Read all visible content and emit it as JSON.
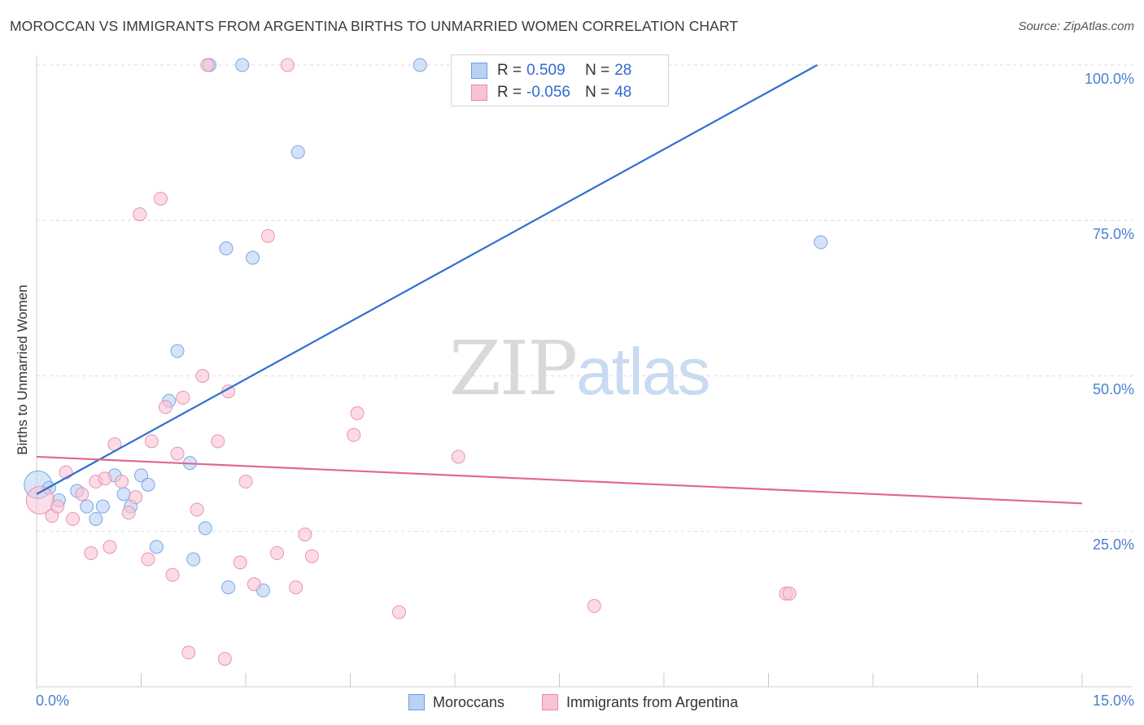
{
  "title": "MOROCCAN VS IMMIGRANTS FROM ARGENTINA BIRTHS TO UNMARRIED WOMEN CORRELATION CHART",
  "source": "Source: ZipAtlas.com",
  "watermark": {
    "zip": "ZIP",
    "atlas": "atlas"
  },
  "legend": {
    "r_label": "R =",
    "n_label": "N =",
    "series": [
      {
        "name": "Moroccans",
        "r": "0.509",
        "n": "28",
        "color": "#6d9de0",
        "fill": "#b9d1f3"
      },
      {
        "name": "Immigrants from Argentina",
        "r": "-0.056",
        "n": "48",
        "color": "#e98aa8",
        "fill": "#f8c3d3"
      }
    ]
  },
  "chart_data": {
    "type": "scatter",
    "title": "MOROCCAN VS IMMIGRANTS FROM ARGENTINA BIRTHS TO UNMARRIED WOMEN CORRELATION CHART",
    "xlabel": "",
    "ylabel": "Births to Unmarried Women",
    "xlim": [
      0,
      15
    ],
    "ylim": [
      0,
      105
    ],
    "x_tick_labels": [
      {
        "value": 0,
        "label": "0.0%"
      },
      {
        "value": 15,
        "label": "15.0%"
      }
    ],
    "y_tick_labels": [
      {
        "value": 25,
        "label": "25.0%"
      },
      {
        "value": 50,
        "label": "50.0%"
      },
      {
        "value": 75,
        "label": "75.0%"
      },
      {
        "value": 100,
        "label": "100.0%"
      }
    ],
    "series": [
      {
        "name": "Moroccans",
        "color": "#6d9de0",
        "fill": "#b9d1f3",
        "points": [
          {
            "x": 0.02,
            "y": 32.5,
            "big": true
          },
          {
            "x": 0.18,
            "y": 32.0
          },
          {
            "x": 0.32,
            "y": 30.0
          },
          {
            "x": 0.58,
            "y": 31.5
          },
          {
            "x": 0.72,
            "y": 29.0
          },
          {
            "x": 0.85,
            "y": 27.0
          },
          {
            "x": 0.95,
            "y": 29.0
          },
          {
            "x": 1.12,
            "y": 34.0
          },
          {
            "x": 1.25,
            "y": 31.0
          },
          {
            "x": 1.35,
            "y": 29.0
          },
          {
            "x": 1.5,
            "y": 34.0
          },
          {
            "x": 1.6,
            "y": 32.5
          },
          {
            "x": 1.72,
            "y": 22.5
          },
          {
            "x": 1.9,
            "y": 46.0
          },
          {
            "x": 2.02,
            "y": 54.0
          },
          {
            "x": 2.2,
            "y": 36.0
          },
          {
            "x": 2.25,
            "y": 20.5
          },
          {
            "x": 2.42,
            "y": 25.5
          },
          {
            "x": 2.48,
            "y": 100.0
          },
          {
            "x": 2.72,
            "y": 70.5
          },
          {
            "x": 2.75,
            "y": 16.0
          },
          {
            "x": 2.95,
            "y": 100.0
          },
          {
            "x": 3.1,
            "y": 69.0
          },
          {
            "x": 3.25,
            "y": 15.5
          },
          {
            "x": 3.75,
            "y": 86.0
          },
          {
            "x": 5.5,
            "y": 100.0
          },
          {
            "x": 11.25,
            "y": 71.5
          }
        ],
        "trend": {
          "x": [
            0.0,
            11.2
          ],
          "y": [
            31.0,
            100.0
          ]
        }
      },
      {
        "name": "Immigrants from Argentina",
        "color": "#e98aa8",
        "fill": "#f8c3d3",
        "points": [
          {
            "x": 0.05,
            "y": 30.0,
            "big": true
          },
          {
            "x": 0.22,
            "y": 27.5
          },
          {
            "x": 0.3,
            "y": 29.0
          },
          {
            "x": 0.42,
            "y": 34.5
          },
          {
            "x": 0.52,
            "y": 27.0
          },
          {
            "x": 0.65,
            "y": 31.0
          },
          {
            "x": 0.78,
            "y": 21.5
          },
          {
            "x": 0.85,
            "y": 33.0
          },
          {
            "x": 0.98,
            "y": 33.5
          },
          {
            "x": 1.05,
            "y": 22.5
          },
          {
            "x": 1.12,
            "y": 39.0
          },
          {
            "x": 1.22,
            "y": 33.0
          },
          {
            "x": 1.32,
            "y": 28.0
          },
          {
            "x": 1.42,
            "y": 30.5
          },
          {
            "x": 1.48,
            "y": 76.0
          },
          {
            "x": 1.6,
            "y": 20.5
          },
          {
            "x": 1.65,
            "y": 39.5
          },
          {
            "x": 1.78,
            "y": 78.5
          },
          {
            "x": 1.85,
            "y": 45.0
          },
          {
            "x": 1.95,
            "y": 18.0
          },
          {
            "x": 2.02,
            "y": 37.5
          },
          {
            "x": 2.1,
            "y": 46.5
          },
          {
            "x": 2.18,
            "y": 5.5
          },
          {
            "x": 2.3,
            "y": 28.5
          },
          {
            "x": 2.38,
            "y": 50.0
          },
          {
            "x": 2.45,
            "y": 100.0
          },
          {
            "x": 2.6,
            "y": 39.5
          },
          {
            "x": 2.7,
            "y": 4.5
          },
          {
            "x": 2.75,
            "y": 47.5
          },
          {
            "x": 2.92,
            "y": 20.0
          },
          {
            "x": 3.0,
            "y": 33.0
          },
          {
            "x": 3.12,
            "y": 16.5
          },
          {
            "x": 3.32,
            "y": 72.5
          },
          {
            "x": 3.45,
            "y": 21.5
          },
          {
            "x": 3.6,
            "y": 100.0
          },
          {
            "x": 3.72,
            "y": 16.0
          },
          {
            "x": 3.85,
            "y": 24.5
          },
          {
            "x": 3.95,
            "y": 21.0
          },
          {
            "x": 4.55,
            "y": 40.5
          },
          {
            "x": 4.6,
            "y": 44.0
          },
          {
            "x": 5.2,
            "y": 12.0
          },
          {
            "x": 6.05,
            "y": 37.0
          },
          {
            "x": 8.0,
            "y": 13.0
          },
          {
            "x": 10.75,
            "y": 15.0
          },
          {
            "x": 10.8,
            "y": 15.0
          }
        ],
        "trend": {
          "x": [
            0.0,
            15.0
          ],
          "y": [
            37.0,
            29.5
          ]
        }
      }
    ]
  }
}
